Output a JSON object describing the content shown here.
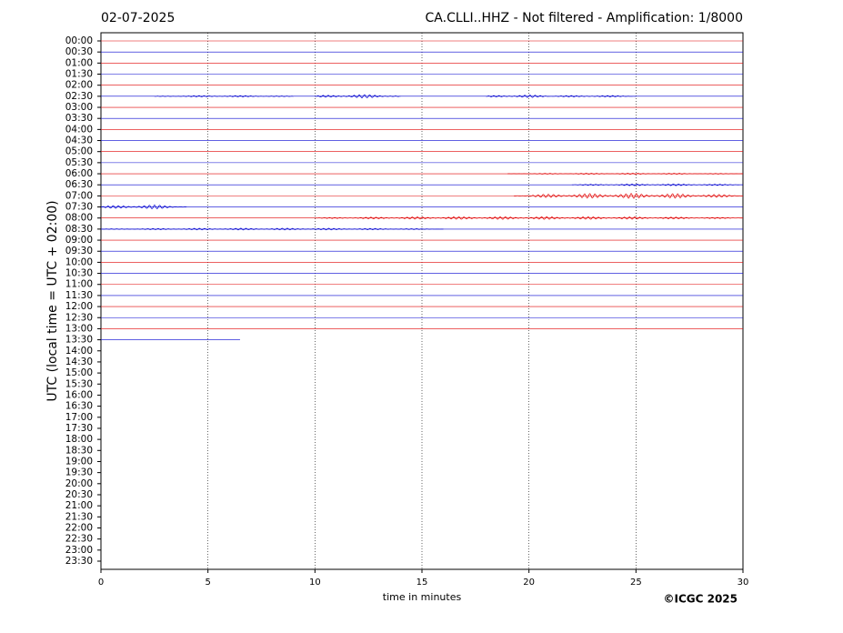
{
  "chart_data": {
    "type": "helicorder",
    "date": "02-07-2025",
    "title": "CA.CLLI..HHZ - Not filtered - Amplification: 1/8000",
    "ylabel": "UTC (local time = UTC + 02:00)",
    "xlabel": "time in minutes",
    "credit": "©ICGC 2025",
    "xlim": [
      0,
      30
    ],
    "xticks": [
      0,
      5,
      10,
      15,
      20,
      25,
      30
    ],
    "grid": true,
    "categories": [
      "00:00",
      "00:30",
      "01:00",
      "01:30",
      "02:00",
      "02:30",
      "03:00",
      "03:30",
      "04:00",
      "04:30",
      "05:00",
      "05:30",
      "06:00",
      "06:30",
      "07:00",
      "07:30",
      "08:00",
      "08:30",
      "09:00",
      "09:30",
      "10:00",
      "10:30",
      "11:00",
      "11:30",
      "12:00",
      "12:30",
      "13:00",
      "13:30",
      "14:00",
      "14:30",
      "15:00",
      "15:30",
      "16:00",
      "16:30",
      "17:00",
      "17:30",
      "18:00",
      "18:30",
      "19:00",
      "19:30",
      "20:00",
      "20:30",
      "21:00",
      "21:30",
      "22:00",
      "22:30",
      "23:00",
      "23:30"
    ],
    "traces": [
      {
        "color": "#e00000",
        "end": 30,
        "bursts": []
      },
      {
        "color": "#0000d0",
        "end": 30,
        "bursts": []
      },
      {
        "color": "#e00000",
        "end": 30,
        "bursts": []
      },
      {
        "color": "#0000d0",
        "end": 30,
        "bursts": []
      },
      {
        "color": "#e00000",
        "end": 30,
        "bursts": []
      },
      {
        "color": "#0000d0",
        "end": 30,
        "bursts": [
          [
            2.5,
            9,
            0.06
          ],
          [
            10,
            14,
            0.15
          ],
          [
            18,
            21,
            0.12
          ],
          [
            21,
            25,
            0.07
          ]
        ]
      },
      {
        "color": "#e00000",
        "end": 30,
        "bursts": []
      },
      {
        "color": "#0000d0",
        "end": 30,
        "bursts": []
      },
      {
        "color": "#e00000",
        "end": 30,
        "bursts": []
      },
      {
        "color": "#0000d0",
        "end": 30,
        "bursts": []
      },
      {
        "color": "#e00000",
        "end": 30,
        "bursts": []
      },
      {
        "color": "#0000d0",
        "end": 30,
        "bursts": []
      },
      {
        "color": "#e00000",
        "end": 30,
        "bursts": [
          [
            19,
            30,
            0.05
          ]
        ]
      },
      {
        "color": "#0000d0",
        "end": 30,
        "bursts": [
          [
            22,
            30,
            0.08
          ]
        ]
      },
      {
        "color": "#e00000",
        "end": 30,
        "bursts": [
          [
            19.3,
            30,
            0.22
          ]
        ]
      },
      {
        "color": "#0000d0",
        "end": 30,
        "bursts": [
          [
            0,
            4,
            0.18
          ]
        ]
      },
      {
        "color": "#e00000",
        "end": 30,
        "bursts": [
          [
            10,
            30,
            0.12
          ]
        ]
      },
      {
        "color": "#0000d0",
        "end": 30,
        "bursts": [
          [
            0,
            16,
            0.08
          ]
        ]
      },
      {
        "color": "#e00000",
        "end": 30,
        "bursts": []
      },
      {
        "color": "#0000d0",
        "end": 30,
        "bursts": []
      },
      {
        "color": "#e00000",
        "end": 30,
        "bursts": []
      },
      {
        "color": "#0000d0",
        "end": 30,
        "bursts": []
      },
      {
        "color": "#e00000",
        "end": 30,
        "bursts": []
      },
      {
        "color": "#0000d0",
        "end": 30,
        "bursts": []
      },
      {
        "color": "#e00000",
        "end": 30,
        "bursts": []
      },
      {
        "color": "#0000d0",
        "end": 30,
        "bursts": []
      },
      {
        "color": "#e00000",
        "end": 30,
        "bursts": []
      },
      {
        "color": "#0000d0",
        "end": 6.5,
        "bursts": []
      }
    ]
  }
}
